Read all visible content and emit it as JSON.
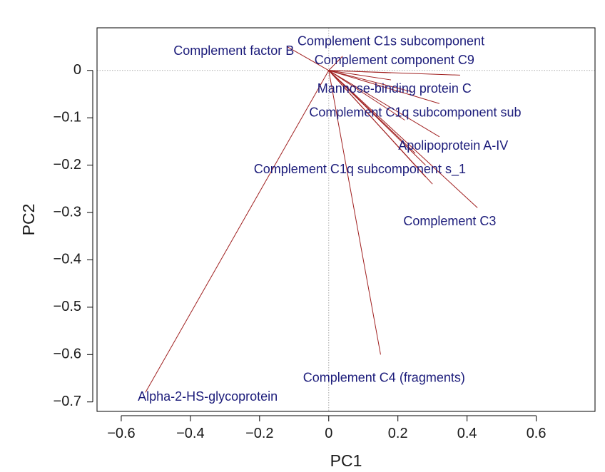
{
  "chart_data": {
    "type": "scatter",
    "subtype": "pca-loadings-biplot",
    "title": "",
    "xlabel": "PC1",
    "ylabel": "PC2",
    "xlim": [
      -0.67,
      0.77
    ],
    "ylim": [
      -0.72,
      0.09
    ],
    "xticks": [
      -0.6,
      -0.4,
      -0.2,
      0,
      0.2,
      0.4,
      0.6
    ],
    "xtick_labels": [
      "−0.6",
      "−0.4",
      "−0.2",
      "0",
      "0.2",
      "0.4",
      "0.6"
    ],
    "yticks": [
      0,
      -0.1,
      -0.2,
      -0.3,
      -0.4,
      -0.5,
      -0.6,
      -0.7
    ],
    "ytick_labels": [
      "0",
      "−0.1",
      "−0.2",
      "−0.3",
      "−0.4",
      "−0.5",
      "−0.6",
      "−0.7"
    ],
    "reference_lines": {
      "x": 0,
      "y": 0
    },
    "colors": {
      "arrow": "#a02020",
      "label": "#1b1b7a",
      "reference": "#aaaaaa",
      "frame": "#000000"
    },
    "loadings": [
      {
        "name": "Complement factor B",
        "x": -0.12,
        "y": 0.05,
        "label_x": -0.1,
        "label_y": 0.04,
        "anchor": "end"
      },
      {
        "name": "Complement C1s subcomponent",
        "x": 0.04,
        "y": 0.03,
        "label_x": 0.18,
        "label_y": 0.06,
        "anchor": "middle"
      },
      {
        "name": "Complement component C9",
        "x": 0.38,
        "y": -0.01,
        "label_x": 0.19,
        "label_y": 0.02,
        "anchor": "middle"
      },
      {
        "name": "Mannose-binding protein C",
        "x": 0.18,
        "y": -0.02,
        "label_x": 0.19,
        "label_y": -0.04,
        "anchor": "middle"
      },
      {
        "name": "Complement C1q subcomponent sub",
        "x": 0.32,
        "y": -0.07,
        "label_x": 0.25,
        "label_y": -0.09,
        "anchor": "middle"
      },
      {
        "name": "Apolipoprotein A-IV",
        "x": 0.32,
        "y": -0.14,
        "label_x": 0.36,
        "label_y": -0.16,
        "anchor": "middle"
      },
      {
        "name": "Complement C1q subcomponent s_1",
        "x": 0.3,
        "y": -0.24,
        "label_x": 0.09,
        "label_y": -0.21,
        "anchor": "middle"
      },
      {
        "name": "Complement C3",
        "x": 0.43,
        "y": -0.29,
        "label_x": 0.35,
        "label_y": -0.32,
        "anchor": "middle"
      },
      {
        "name": "Complement C4 (fragments)",
        "x": 0.15,
        "y": -0.6,
        "label_x": 0.16,
        "label_y": -0.65,
        "anchor": "middle"
      },
      {
        "name": "Alpha-2-HS-glycoprotein",
        "x": -0.53,
        "y": -0.68,
        "label_x": -0.35,
        "label_y": -0.69,
        "anchor": "middle"
      }
    ],
    "extra_vectors": [
      {
        "x": 0.18,
        "y": -0.005
      },
      {
        "x": 0.24,
        "y": -0.045
      },
      {
        "x": 0.22,
        "y": -0.105
      },
      {
        "x": 0.25,
        "y": -0.175
      },
      {
        "x": 0.28,
        "y": -0.2
      },
      {
        "x": 0.28,
        "y": -0.225
      }
    ],
    "grid": false,
    "legend": "none"
  }
}
